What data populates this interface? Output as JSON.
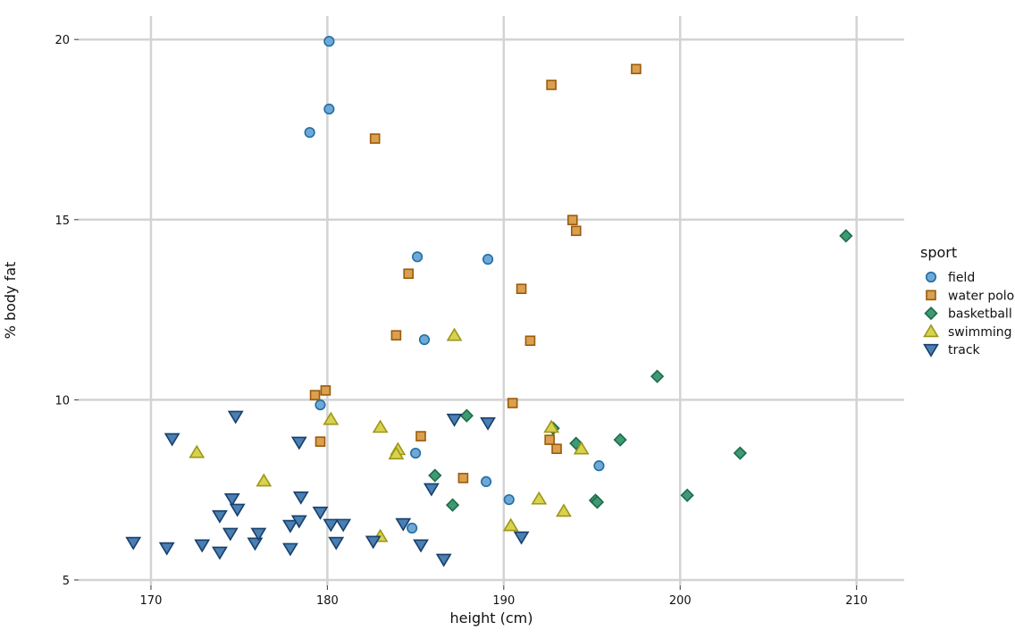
{
  "chart_data": {
    "type": "scatter",
    "title": "",
    "xlabel": "height (cm)",
    "ylabel": "% body fat",
    "xlim": [
      165.9,
      212.7
    ],
    "ylim": [
      4.85,
      20.65
    ],
    "xticks": [
      170,
      180,
      190,
      200,
      210
    ],
    "yticks": [
      5,
      10,
      15,
      20
    ],
    "grid": true,
    "legend": {
      "title": "sport",
      "placement": "right"
    },
    "series": [
      {
        "name": "field",
        "shape": "circle",
        "fill": "#6fa8d6",
        "stroke": "#1f6fa3",
        "points": [
          [
            180.1,
            19.95
          ],
          [
            180.1,
            18.07
          ],
          [
            179.0,
            17.42
          ],
          [
            185.1,
            13.97
          ],
          [
            189.1,
            13.9
          ],
          [
            185.5,
            11.67
          ],
          [
            179.6,
            9.86
          ],
          [
            185.0,
            8.52
          ],
          [
            189.0,
            7.73
          ],
          [
            190.3,
            7.23
          ],
          [
            195.4,
            8.17
          ],
          [
            184.8,
            6.44
          ]
        ]
      },
      {
        "name": "water polo",
        "shape": "square",
        "fill": "#daa04f",
        "stroke": "#9a5b0a",
        "points": [
          [
            197.5,
            19.18
          ],
          [
            192.7,
            18.74
          ],
          [
            182.7,
            17.25
          ],
          [
            193.9,
            14.99
          ],
          [
            194.1,
            14.69
          ],
          [
            191.0,
            13.08
          ],
          [
            184.6,
            13.5
          ],
          [
            183.9,
            11.79
          ],
          [
            191.5,
            11.64
          ],
          [
            179.3,
            10.13
          ],
          [
            179.9,
            10.26
          ],
          [
            190.5,
            9.91
          ],
          [
            179.6,
            8.84
          ],
          [
            185.3,
            8.99
          ],
          [
            192.6,
            8.89
          ],
          [
            193.0,
            8.64
          ],
          [
            187.7,
            7.83
          ]
        ]
      },
      {
        "name": "basketball",
        "shape": "diamond",
        "fill": "#3d9a72",
        "stroke": "#1d6b4a",
        "points": [
          [
            209.4,
            14.55
          ],
          [
            198.7,
            10.65
          ],
          [
            187.9,
            9.56
          ],
          [
            192.8,
            9.21
          ],
          [
            194.1,
            8.79
          ],
          [
            196.6,
            8.89
          ],
          [
            203.4,
            8.52
          ],
          [
            186.1,
            7.9
          ],
          [
            187.1,
            7.08
          ],
          [
            195.2,
            7.21
          ],
          [
            195.3,
            7.16
          ],
          [
            200.4,
            7.35
          ]
        ]
      },
      {
        "name": "swimming",
        "shape": "triangle-up",
        "fill": "#d8d24e",
        "stroke": "#9d9618",
        "points": [
          [
            187.2,
            11.79
          ],
          [
            180.2,
            9.46
          ],
          [
            183.0,
            9.24
          ],
          [
            172.6,
            8.54
          ],
          [
            184.0,
            8.62
          ],
          [
            183.9,
            8.5
          ],
          [
            192.7,
            9.24
          ],
          [
            194.4,
            8.64
          ],
          [
            176.4,
            7.75
          ],
          [
            192.0,
            7.25
          ],
          [
            193.4,
            6.91
          ],
          [
            190.4,
            6.51
          ],
          [
            183.0,
            6.21
          ]
        ]
      },
      {
        "name": "track",
        "shape": "triangle-down",
        "fill": "#4a7fb3",
        "stroke": "#173f6b",
        "points": [
          [
            169.0,
            6.04
          ],
          [
            170.9,
            5.89
          ],
          [
            172.9,
            5.97
          ],
          [
            173.9,
            5.77
          ],
          [
            173.9,
            6.78
          ],
          [
            174.5,
            6.29
          ],
          [
            174.6,
            7.25
          ],
          [
            174.9,
            6.96
          ],
          [
            175.9,
            6.02
          ],
          [
            176.1,
            6.29
          ],
          [
            177.9,
            5.87
          ],
          [
            177.9,
            6.51
          ],
          [
            178.4,
            6.64
          ],
          [
            178.5,
            7.3
          ],
          [
            179.6,
            6.88
          ],
          [
            180.2,
            6.54
          ],
          [
            180.5,
            6.04
          ],
          [
            180.9,
            6.54
          ],
          [
            182.6,
            6.07
          ],
          [
            184.3,
            6.56
          ],
          [
            185.3,
            5.97
          ],
          [
            185.9,
            7.53
          ],
          [
            186.6,
            5.57
          ],
          [
            187.2,
            9.46
          ],
          [
            189.1,
            9.36
          ],
          [
            191.0,
            6.19
          ],
          [
            171.2,
            8.92
          ],
          [
            174.8,
            9.54
          ],
          [
            178.4,
            8.82
          ]
        ]
      }
    ]
  }
}
